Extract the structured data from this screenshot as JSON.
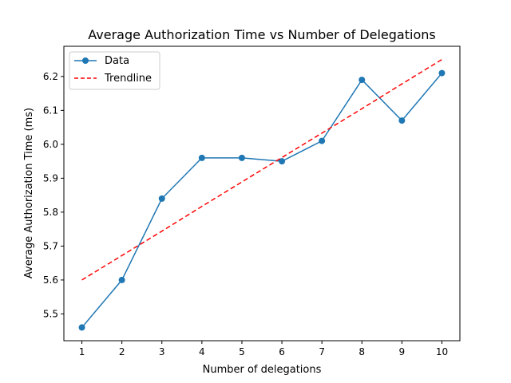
{
  "chart_data": {
    "type": "line",
    "title": "Average Authorization Time vs Number of Delegations",
    "xlabel": "Number of delegations",
    "ylabel": "Average Authorization Time (ms)",
    "x": [
      1,
      2,
      3,
      4,
      5,
      6,
      7,
      8,
      9,
      10
    ],
    "xticks": [
      "1",
      "2",
      "3",
      "4",
      "5",
      "6",
      "7",
      "8",
      "9",
      "10"
    ],
    "yticks": [
      "5.5",
      "5.6",
      "5.7",
      "5.8",
      "5.9",
      "6.0",
      "6.1",
      "6.2"
    ],
    "xlim": [
      0.55,
      10.45
    ],
    "ylim": [
      5.421,
      6.289
    ],
    "grid": false,
    "legend": "top-left",
    "series": [
      {
        "name": "Data",
        "style": "solid-line-with-circle-markers",
        "color": "#1f77b4",
        "values": [
          5.46,
          5.6,
          5.84,
          5.96,
          5.96,
          5.95,
          6.01,
          6.19,
          6.07,
          6.21
        ]
      },
      {
        "name": "Trendline",
        "style": "dashed-line",
        "color": "#ff0000",
        "values": [
          5.6,
          5.672,
          5.744,
          5.817,
          5.889,
          5.961,
          6.033,
          6.105,
          6.178,
          6.25
        ]
      }
    ]
  }
}
